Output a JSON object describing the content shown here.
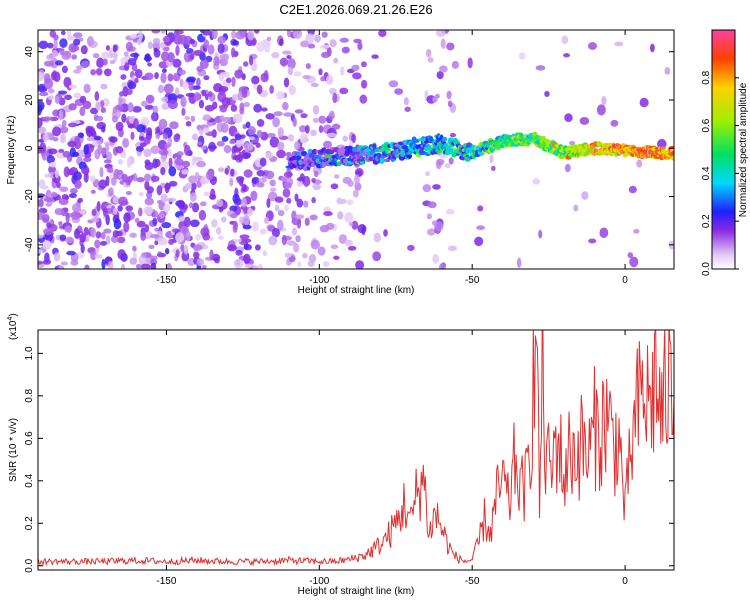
{
  "title": "C2E1.2026.069.21.26.E26",
  "chart_data": [
    {
      "type": "heatmap",
      "xlabel": "Height of straight line (km)",
      "ylabel": "Frequency (Hz)",
      "xlim": [
        -192,
        16
      ],
      "ylim": [
        -50,
        49
      ],
      "x_ticks": [
        -150,
        -100,
        -50,
        0
      ],
      "y_ticks": [
        -40,
        -20,
        0,
        20,
        40
      ],
      "colorbar": {
        "label": "Normalized spectral amplitude",
        "range": [
          0,
          1
        ],
        "ticks": [
          0.0,
          0.2,
          0.4,
          0.6,
          0.8
        ]
      },
      "ridge": {
        "description": "dominant spectral band near 0 Hz",
        "points": [
          {
            "x": -110,
            "y": -6,
            "amp": 0.25
          },
          {
            "x": -100,
            "y": -4,
            "amp": 0.3
          },
          {
            "x": -90,
            "y": -3,
            "amp": 0.35
          },
          {
            "x": -80,
            "y": -2,
            "amp": 0.4
          },
          {
            "x": -70,
            "y": 0,
            "amp": 0.45
          },
          {
            "x": -60,
            "y": 2,
            "amp": 0.5
          },
          {
            "x": -50,
            "y": -2,
            "amp": 0.45
          },
          {
            "x": -40,
            "y": 3,
            "amp": 0.6
          },
          {
            "x": -30,
            "y": 4,
            "amp": 0.6
          },
          {
            "x": -20,
            "y": -2,
            "amp": 0.7
          },
          {
            "x": -10,
            "y": 0,
            "amp": 0.85
          },
          {
            "x": 0,
            "y": -1,
            "amp": 0.9
          },
          {
            "x": 15,
            "y": -2,
            "amp": 0.95
          }
        ]
      }
    },
    {
      "type": "line",
      "xlabel": "Height of straight line (km)",
      "ylabel": "SNR (10 * v/v)",
      "y_multiplier": "(x10",
      "y_multiplier_exp": "4",
      "xlim": [
        -192,
        16
      ],
      "ylim": [
        -0.02,
        1.11
      ],
      "x_ticks": [
        -150,
        -100,
        -50,
        0
      ],
      "y_ticks": [
        0.0,
        0.2,
        0.4,
        0.6,
        0.8,
        1.0
      ],
      "color": "#e03030",
      "series": [
        {
          "x": [
            -192,
            -180,
            -170,
            -160,
            -150,
            -140,
            -130,
            -120,
            -110,
            -100,
            -95,
            -90,
            -85,
            -80,
            -77,
            -74,
            -72,
            -70,
            -68,
            -66,
            -64,
            -62,
            -60,
            -58,
            -56,
            -54,
            -52,
            -50,
            -48,
            -46,
            -44,
            -42,
            -40,
            -38,
            -36,
            -34,
            -32,
            -30,
            -29,
            -28,
            -27,
            -26,
            -24,
            -22,
            -20,
            -18,
            -16,
            -14,
            -12,
            -10,
            -8,
            -6,
            -4,
            -2,
            0,
            2,
            4,
            6,
            8,
            10,
            12,
            14,
            16
          ],
          "y": [
            0.02,
            0.02,
            0.02,
            0.025,
            0.02,
            0.025,
            0.02,
            0.02,
            0.025,
            0.02,
            0.02,
            0.03,
            0.05,
            0.1,
            0.15,
            0.22,
            0.3,
            0.2,
            0.35,
            0.42,
            0.15,
            0.25,
            0.18,
            0.1,
            0.05,
            0.03,
            0.02,
            0.03,
            0.1,
            0.22,
            0.15,
            0.32,
            0.4,
            0.28,
            0.5,
            0.35,
            0.4,
            0.85,
            1.1,
            0.3,
            0.95,
            0.5,
            0.45,
            0.62,
            0.4,
            0.55,
            0.52,
            0.58,
            0.5,
            0.65,
            0.62,
            0.72,
            0.58,
            0.6,
            0.25,
            0.55,
            0.72,
            0.82,
            0.75,
            0.88,
            0.7,
            0.85,
            0.78
          ]
        }
      ]
    }
  ]
}
